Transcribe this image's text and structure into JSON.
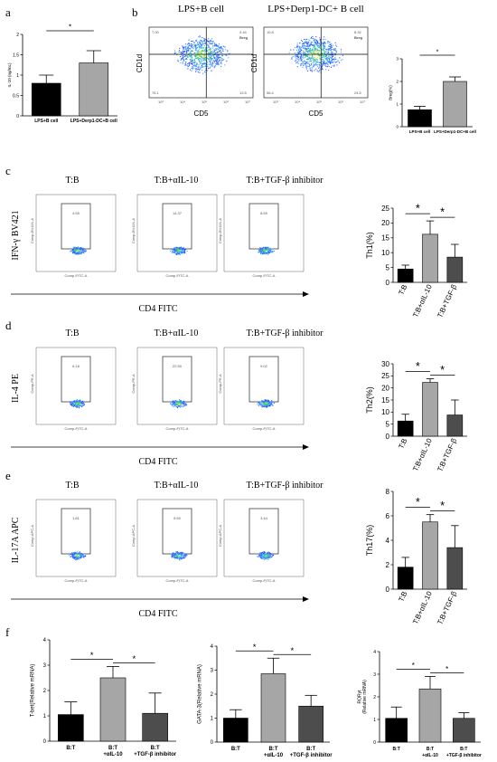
{
  "panel_letters": [
    "a",
    "b",
    "c",
    "d",
    "e",
    "f"
  ],
  "flow": {
    "b": {
      "titles": [
        "LPS+B cell",
        "LPS+Derp1-DC+ B cell"
      ],
      "xlabel": "CD5",
      "ylabel": "CD1d",
      "gate_label": "Breg",
      "quadrants": [
        [
          "7.00",
          "3.44",
          "76.1",
          "13.5"
        ],
        [
          "10.8",
          "8.32",
          "56.4",
          "24.5"
        ]
      ],
      "ticks_x": [
        "10³",
        "10⁴",
        "10⁵",
        "10⁶",
        "10⁷"
      ]
    },
    "c": {
      "titles": [
        "T:B",
        "T:B+αIL-10",
        "T:B+TGF-β inhibitor"
      ],
      "gates": [
        "4.55",
        "14.37",
        "8.59"
      ],
      "ylabel": "IFN-γ BV421",
      "xlabel": "CD4 FITC",
      "axis_y": "Comp-BV421-A",
      "axis_x": "Comp-FITC-A"
    },
    "d": {
      "titles": [
        "T:B",
        "T:B+αIL-10",
        "T:B+TGF-β inhibitor"
      ],
      "gates": [
        "6.18",
        "22.50",
        "9.02"
      ],
      "ylabel": "IL-4 PE",
      "xlabel": "CD4 FITC",
      "axis_y": "Comp-PE-A",
      "axis_x": "Comp-FITC-A"
    },
    "e": {
      "titles": [
        "T:B",
        "T:B+αIL-10",
        "T:B+TGF-β inhibitor"
      ],
      "gates": [
        "1.81",
        "5.50",
        "3.44"
      ],
      "ylabel": "IL-17A APC",
      "xlabel": "CD4 FITC",
      "axis_y": "Comp-APC-A",
      "axis_x": "Comp-FITC-A"
    }
  },
  "colors": {
    "black": "#000000",
    "gray": "#a6a6a6",
    "dark_gray": "#4d4d4d"
  },
  "chart_data": [
    {
      "id": "a",
      "type": "bar",
      "categories": [
        "LPS+B cell",
        "LPS+Derp1-DC+B cell"
      ],
      "values": [
        0.8,
        1.3
      ],
      "errors": [
        0.2,
        0.3
      ],
      "ylabel": "IL-10 (ng/mL)",
      "ylim": [
        0,
        2.0
      ],
      "yticks": [
        0,
        0.5,
        1.0,
        1.5,
        2.0
      ],
      "sig": [
        {
          "from": 0,
          "to": 1,
          "label": "*"
        }
      ]
    },
    {
      "id": "b",
      "type": "bar",
      "categories": [
        "LPS+B cell",
        "LPS+Derp1-DC+B cell"
      ],
      "values": [
        0.75,
        2.0
      ],
      "errors": [
        0.15,
        0.2
      ],
      "ylabel": "Breg(%)",
      "ylim": [
        0,
        3
      ],
      "yticks": [
        0,
        1,
        2,
        3
      ],
      "sig": [
        {
          "from": 0,
          "to": 1,
          "label": "*"
        }
      ]
    },
    {
      "id": "c",
      "type": "bar",
      "categories": [
        "T:B",
        "T:B+αIL-10",
        "T:B+TGF-β"
      ],
      "values": [
        4.5,
        16.2,
        8.5
      ],
      "errors": [
        1.3,
        4.5,
        4.3
      ],
      "ylabel": "Th1(%)",
      "ylim": [
        0,
        25
      ],
      "yticks": [
        0,
        5,
        10,
        15,
        20,
        25
      ],
      "sig": [
        {
          "from": 0,
          "to": 1,
          "label": "*"
        },
        {
          "from": 1,
          "to": 2,
          "label": "*"
        }
      ]
    },
    {
      "id": "d",
      "type": "bar",
      "categories": [
        "T:B",
        "T:B+αIL-10",
        "T:B+TGF-β"
      ],
      "values": [
        6.3,
        22.3,
        8.8
      ],
      "errors": [
        2.8,
        1.5,
        6.2
      ],
      "ylabel": "Th2(%)",
      "ylim": [
        0,
        30
      ],
      "yticks": [
        0,
        5,
        10,
        15,
        20,
        25,
        30
      ],
      "sig": [
        {
          "from": 0,
          "to": 1,
          "label": "*"
        },
        {
          "from": 1,
          "to": 2,
          "label": "*"
        }
      ]
    },
    {
      "id": "e",
      "type": "bar",
      "categories": [
        "T:B",
        "T:B+αIL-10",
        "T:B+TGF-β"
      ],
      "values": [
        1.8,
        5.5,
        3.4
      ],
      "errors": [
        0.8,
        0.6,
        1.8
      ],
      "ylabel": "Th17(%)",
      "ylim": [
        0,
        8
      ],
      "yticks": [
        0,
        2,
        4,
        6,
        8
      ],
      "sig": [
        {
          "from": 0,
          "to": 1,
          "label": "*"
        },
        {
          "from": 1,
          "to": 2,
          "label": "*"
        }
      ]
    },
    {
      "id": "f1",
      "type": "bar",
      "categories": [
        "B:T",
        "B:T\n+αIL-10",
        "B:T\n+TGF-β inhibitor"
      ],
      "values": [
        1.05,
        2.5,
        1.1
      ],
      "errors": [
        0.5,
        0.45,
        0.8
      ],
      "ylabel": "T-bet(Relative mRNA)",
      "ylim": [
        0,
        4
      ],
      "yticks": [
        0,
        1,
        2,
        3,
        4
      ],
      "sig": [
        {
          "from": 0,
          "to": 1,
          "label": "*"
        },
        {
          "from": 1,
          "to": 2,
          "label": "*"
        }
      ]
    },
    {
      "id": "f2",
      "type": "bar",
      "categories": [
        "B:T",
        "B:T\n+αIL-10",
        "B:T\n+TGF-β inhibitor"
      ],
      "values": [
        1.0,
        2.85,
        1.5
      ],
      "errors": [
        0.35,
        0.65,
        0.45
      ],
      "ylabel": "GATA-3(Relative mRNA)",
      "ylim": [
        0,
        4
      ],
      "yticks": [
        0,
        1,
        2,
        3,
        4
      ],
      "sig": [
        {
          "from": 0,
          "to": 1,
          "label": "*"
        },
        {
          "from": 1,
          "to": 2,
          "label": "*"
        }
      ]
    },
    {
      "id": "f3",
      "type": "bar",
      "categories": [
        "B:T",
        "B:T\n+αIL-10",
        "B:T\n+TGF-β inhibitor"
      ],
      "values": [
        1.05,
        2.35,
        1.05
      ],
      "errors": [
        0.5,
        0.55,
        0.25
      ],
      "ylabel": "RORγt\n(Relative mRNA)",
      "ylim": [
        0,
        4
      ],
      "yticks": [
        0,
        1,
        2,
        3,
        4
      ],
      "sig": [
        {
          "from": 0,
          "to": 1,
          "label": "*"
        },
        {
          "from": 1,
          "to": 2,
          "label": "*"
        }
      ]
    }
  ]
}
